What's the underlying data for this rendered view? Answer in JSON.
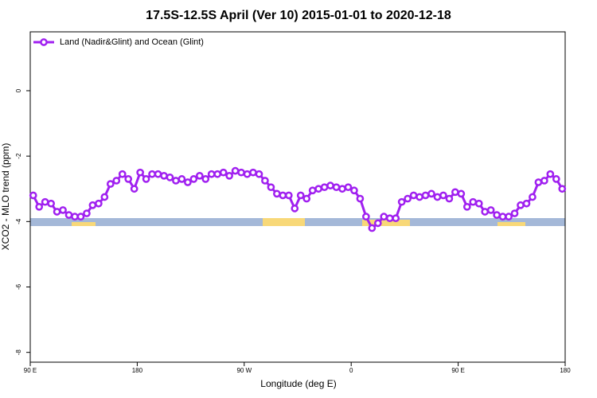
{
  "chart_data": {
    "type": "line",
    "title": "17.5S-12.5S April (Ver 10)   2015-01-01 to 2020-12-18",
    "xlabel": "Longitude (deg E)",
    "ylabel": "XCO2 - MLO trend (ppm)",
    "xlim": [
      90,
      540
    ],
    "ylim": [
      -8.3,
      1.8
    ],
    "xticks": [
      {
        "value": 90,
        "label": "90 E"
      },
      {
        "value": 180,
        "label": "180"
      },
      {
        "value": 270,
        "label": "90 W"
      },
      {
        "value": 360,
        "label": "0"
      },
      {
        "value": 450,
        "label": "90 E"
      },
      {
        "value": 540,
        "label": "180"
      }
    ],
    "yticks": [
      0,
      -2,
      -4,
      -6,
      -8
    ],
    "legend": "top-left",
    "x": [
      92.5,
      97.5,
      102.5,
      107.5,
      112.5,
      117.5,
      122.5,
      127.5,
      132.5,
      137.5,
      142.5,
      147.5,
      152.5,
      157.5,
      162.5,
      167.5,
      172.5,
      177.5,
      182.5,
      187.5,
      192.5,
      197.5,
      202.5,
      207.5,
      212.5,
      217.5,
      222.5,
      227.5,
      232.5,
      237.5,
      242.5,
      247.5,
      252.5,
      257.5,
      262.5,
      267.5,
      272.5,
      277.5,
      282.5,
      287.5,
      292.5,
      297.5,
      302.5,
      307.5,
      312.5,
      317.5,
      322.5,
      327.5,
      332.5,
      337.5,
      342.5,
      347.5,
      352.5,
      357.5,
      362.5,
      367.5,
      372.5,
      377.5,
      382.5,
      387.5,
      392.5,
      397.5,
      402.5,
      407.5,
      412.5,
      417.5,
      422.5,
      427.5,
      432.5,
      437.5,
      442.5,
      447.5,
      452.5,
      457.5,
      462.5,
      467.5,
      472.5,
      477.5,
      482.5,
      487.5,
      492.5,
      497.5,
      502.5,
      507.5,
      512.5,
      517.5,
      522.5,
      527.5,
      532.5,
      537.5
    ],
    "series": [
      {
        "name": "Land (Nadir&Glint) and Ocean (Glint)",
        "color": "#a020f0",
        "values": [
          -3.2,
          -3.55,
          -3.4,
          -3.45,
          -3.7,
          -3.65,
          -3.8,
          -3.85,
          -3.85,
          -3.75,
          -3.5,
          -3.45,
          -3.25,
          -2.85,
          -2.75,
          -2.55,
          -2.7,
          -3.0,
          -2.5,
          -2.7,
          -2.55,
          -2.55,
          -2.6,
          -2.65,
          -2.75,
          -2.7,
          -2.8,
          -2.7,
          -2.6,
          -2.7,
          -2.55,
          -2.55,
          -2.5,
          -2.6,
          -2.45,
          -2.5,
          -2.55,
          -2.5,
          -2.55,
          -2.75,
          -2.95,
          -3.15,
          -3.2,
          -3.2,
          -3.6,
          -3.2,
          -3.3,
          -3.05,
          -3.0,
          -2.95,
          -2.9,
          -2.95,
          -3.0,
          -2.95,
          -3.05,
          -3.3,
          -3.85,
          -4.2,
          -4.05,
          -3.85,
          -3.9,
          -3.9,
          -3.4,
          -3.3,
          -3.2,
          -3.25,
          -3.2,
          -3.15,
          -3.25,
          -3.2,
          -3.3,
          -3.1,
          -3.15,
          -3.55,
          -3.4,
          -3.45,
          -3.7,
          -3.65,
          -3.8,
          -3.85,
          -3.85,
          -3.75,
          -3.5,
          -3.45,
          -3.25,
          -2.8,
          -2.75,
          -2.55,
          -2.7,
          -3.0
        ]
      }
    ]
  }
}
